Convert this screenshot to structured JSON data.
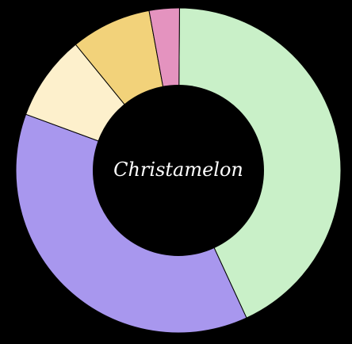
{
  "chart_data": {
    "type": "pie",
    "variant": "donut",
    "center_label": "Christamelon",
    "slices": [
      {
        "value": 43.0,
        "color": "#c9f0c8"
      },
      {
        "value": 37.5,
        "color": "#a897ee"
      },
      {
        "value": 8.5,
        "color": "#fdf0cc"
      },
      {
        "value": 8.0,
        "color": "#f2d27a"
      },
      {
        "value": 3.0,
        "color": "#e493bf"
      }
    ],
    "legend": "none",
    "background": "#000000"
  }
}
